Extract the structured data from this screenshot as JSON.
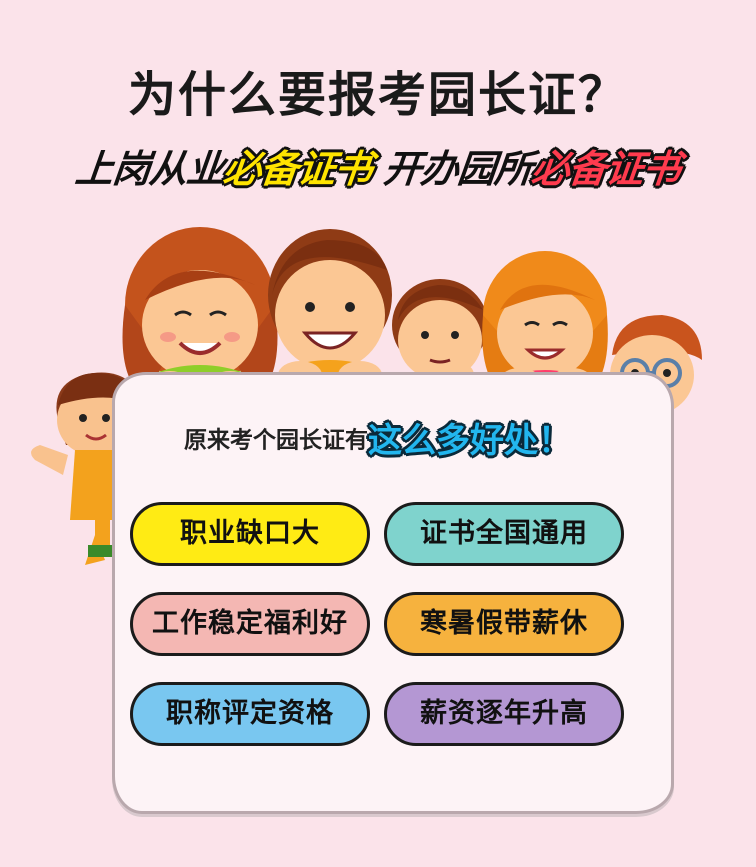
{
  "title": "为什么要报考园长证？",
  "subtitle": {
    "part1": "上岗从业",
    "highlight1": "必备证书",
    "part2": "开办园所",
    "highlight2": "必备证书"
  },
  "board": {
    "heading_plain": "原来考个园长证有",
    "heading_emphasis": "这么多好处！"
  },
  "benefits": [
    {
      "label": "职业缺口大",
      "color": "#ffeb14"
    },
    {
      "label": "证书全国通用",
      "color": "#7fd3cd"
    },
    {
      "label": "工作稳定福利好",
      "color": "#f4b7b3"
    },
    {
      "label": "寒暑假带薪休",
      "color": "#f6b23e"
    },
    {
      "label": "职称评定资格",
      "color": "#79c7f0"
    },
    {
      "label": "薪资逐年升高",
      "color": "#b497d3"
    }
  ],
  "colors": {
    "background": "#fbe3ea",
    "highlight_yellow": "#ffe400",
    "highlight_red": "#ff3b4e",
    "emphasis_blue": "#22b6ee"
  }
}
